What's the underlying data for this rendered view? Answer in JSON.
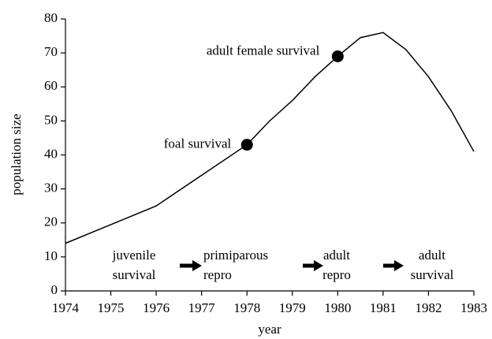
{
  "chart_data": {
    "type": "line",
    "x_label": "year",
    "y_label": "population size",
    "x": [
      1974,
      1975,
      1976,
      1977,
      1978,
      1978.5,
      1979,
      1979.5,
      1980,
      1980.5,
      1981,
      1981.5,
      1982,
      1982.5,
      1983
    ],
    "values": [
      14,
      19.5,
      25,
      34,
      43,
      50,
      56,
      63,
      69,
      74.5,
      76,
      71,
      63,
      53,
      41
    ],
    "color": "#000000",
    "points": {
      "x": [
        1978,
        1980
      ],
      "values": [
        43,
        69
      ],
      "labels": [
        "foal survival",
        "adult female survival"
      ]
    },
    "phases": [
      [
        "juvenile",
        "survival"
      ],
      [
        "primiparous",
        "repro"
      ],
      [
        "adult",
        "repro"
      ],
      [
        "adult",
        "survival"
      ]
    ],
    "xlim": [
      1974,
      1983
    ],
    "xticks": [
      1974,
      1975,
      1976,
      1977,
      1978,
      1979,
      1980,
      1981,
      1982,
      1983
    ],
    "ylim": [
      0,
      80
    ],
    "yticks": [
      0,
      10,
      20,
      30,
      40,
      50,
      60,
      70,
      80
    ],
    "grid": false
  }
}
